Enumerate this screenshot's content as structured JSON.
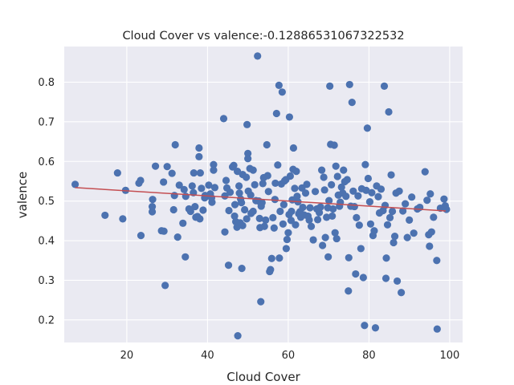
{
  "chart_data": {
    "type": "scatter",
    "title": "Cloud Cover vs valence:-0.12886531067322532",
    "xlabel": "Cloud Cover",
    "ylabel": "valence",
    "xlim": [
      4.5,
      103.2
    ],
    "ylim": [
      0.143,
      0.89
    ],
    "xticks": [
      20,
      40,
      60,
      80,
      100
    ],
    "yticks": [
      0.2,
      0.3,
      0.4,
      0.5,
      0.6,
      0.7,
      0.8
    ],
    "xtick_labels": [
      "20",
      "40",
      "60",
      "80",
      "100"
    ],
    "ytick_labels": [
      "0.2",
      "0.3",
      "0.4",
      "0.5",
      "0.6",
      "0.7",
      "0.8"
    ],
    "grid": true,
    "background": "#eaeaf2",
    "point_color": "#4c72b0",
    "trend_color": "#c44e52",
    "trend_line": [
      [
        7.2,
        0.534
      ],
      [
        99,
        0.475
      ]
    ],
    "points": [
      [
        7.2,
        0.542
      ],
      [
        14.6,
        0.464
      ],
      [
        17.7,
        0.571
      ],
      [
        19.0,
        0.455
      ],
      [
        19.7,
        0.527
      ],
      [
        23.0,
        0.545
      ],
      [
        23.4,
        0.552
      ],
      [
        23.5,
        0.413
      ],
      [
        26.4,
        0.504
      ],
      [
        26.3,
        0.486
      ],
      [
        26.3,
        0.473
      ],
      [
        27.1,
        0.588
      ],
      [
        28.6,
        0.425
      ],
      [
        29.1,
        0.548
      ],
      [
        29.2,
        0.424
      ],
      [
        29.5,
        0.287
      ],
      [
        30.0,
        0.587
      ],
      [
        31.2,
        0.57
      ],
      [
        31.6,
        0.478
      ],
      [
        31.8,
        0.514
      ],
      [
        32.0,
        0.642
      ],
      [
        32.6,
        0.409
      ],
      [
        33.0,
        0.54
      ],
      [
        33.9,
        0.444
      ],
      [
        34.2,
        0.529
      ],
      [
        34.5,
        0.359
      ],
      [
        34.6,
        0.512
      ],
      [
        35.4,
        0.48
      ],
      [
        35.8,
        0.474
      ],
      [
        36.2,
        0.538
      ],
      [
        36.5,
        0.521
      ],
      [
        36.6,
        0.571
      ],
      [
        36.9,
        0.486
      ],
      [
        37.1,
        0.459
      ],
      [
        37.5,
        0.461
      ],
      [
        37.9,
        0.634
      ],
      [
        37.9,
        0.612
      ],
      [
        38.2,
        0.571
      ],
      [
        38.1,
        0.455
      ],
      [
        38.5,
        0.532
      ],
      [
        38.9,
        0.477
      ],
      [
        39.3,
        0.508
      ],
      [
        39.4,
        0.514
      ],
      [
        40.3,
        0.54
      ],
      [
        40.7,
        0.518
      ],
      [
        41.0,
        0.508
      ],
      [
        41.1,
        0.497
      ],
      [
        41.5,
        0.578
      ],
      [
        41.5,
        0.592
      ],
      [
        41.8,
        0.534
      ],
      [
        44.0,
        0.708
      ],
      [
        44.3,
        0.422
      ],
      [
        44.3,
        0.513
      ],
      [
        44.6,
        0.552
      ],
      [
        44.8,
        0.533
      ],
      [
        45.2,
        0.338
      ],
      [
        45.3,
        0.476
      ],
      [
        45.6,
        0.522
      ],
      [
        46.2,
        0.586
      ],
      [
        46.5,
        0.59
      ],
      [
        46.7,
        0.462
      ],
      [
        46.8,
        0.491
      ],
      [
        47.0,
        0.448
      ],
      [
        47.3,
        0.434
      ],
      [
        47.4,
        0.575
      ],
      [
        47.5,
        0.16
      ],
      [
        47.8,
        0.538
      ],
      [
        47.9,
        0.52
      ],
      [
        48.1,
        0.445
      ],
      [
        48.2,
        0.505
      ],
      [
        48.4,
        0.496
      ],
      [
        48.5,
        0.33
      ],
      [
        48.7,
        0.567
      ],
      [
        48.7,
        0.438
      ],
      [
        49.2,
        0.478
      ],
      [
        49.6,
        0.56
      ],
      [
        49.7,
        0.455
      ],
      [
        49.8,
        0.693
      ],
      [
        50.0,
        0.62
      ],
      [
        50.0,
        0.607
      ],
      [
        50.1,
        0.525
      ],
      [
        50.5,
        0.582
      ],
      [
        50.7,
        0.515
      ],
      [
        50.8,
        0.469
      ],
      [
        51.3,
        0.474
      ],
      [
        51.3,
        0.578
      ],
      [
        51.7,
        0.541
      ],
      [
        52.0,
        0.501
      ],
      [
        52.4,
        0.866
      ],
      [
        52.7,
        0.5
      ],
      [
        52.9,
        0.456
      ],
      [
        53.0,
        0.433
      ],
      [
        53.2,
        0.246
      ],
      [
        53.3,
        0.487
      ],
      [
        53.5,
        0.496
      ],
      [
        53.7,
        0.544
      ],
      [
        53.9,
        0.559
      ],
      [
        54.1,
        0.436
      ],
      [
        54.4,
        0.452
      ],
      [
        54.7,
        0.642
      ],
      [
        54.9,
        0.564
      ],
      [
        55.1,
        0.524
      ],
      [
        55.4,
        0.322
      ],
      [
        55.6,
        0.327
      ],
      [
        55.9,
        0.355
      ],
      [
        56.2,
        0.458
      ],
      [
        56.5,
        0.432
      ],
      [
        56.7,
        0.504
      ],
      [
        56.8,
        0.545
      ],
      [
        57.1,
        0.721
      ],
      [
        57.4,
        0.591
      ],
      [
        57.7,
        0.792
      ],
      [
        57.8,
        0.356
      ],
      [
        58.0,
        0.474
      ],
      [
        58.3,
        0.543
      ],
      [
        58.5,
        0.775
      ],
      [
        58.7,
        0.442
      ],
      [
        58.9,
        0.491
      ],
      [
        59.1,
        0.551
      ],
      [
        59.4,
        0.554
      ],
      [
        59.5,
        0.38
      ],
      [
        59.7,
        0.403
      ],
      [
        60.0,
        0.42
      ],
      [
        60.2,
        0.466
      ],
      [
        60.3,
        0.712
      ],
      [
        60.5,
        0.563
      ],
      [
        60.7,
        0.451
      ],
      [
        60.8,
        0.474
      ],
      [
        61.0,
        0.503
      ],
      [
        61.2,
        0.58
      ],
      [
        61.3,
        0.634
      ],
      [
        61.6,
        0.532
      ],
      [
        61.8,
        0.44
      ],
      [
        62.0,
        0.575
      ],
      [
        62.2,
        0.512
      ],
      [
        62.4,
        0.498
      ],
      [
        62.6,
        0.468
      ],
      [
        62.9,
        0.473
      ],
      [
        63.1,
        0.459
      ],
      [
        63.4,
        0.533
      ],
      [
        63.6,
        0.484
      ],
      [
        63.9,
        0.465
      ],
      [
        64.3,
        0.52
      ],
      [
        64.6,
        0.542
      ],
      [
        64.9,
        0.462
      ],
      [
        65.2,
        0.452
      ],
      [
        65.4,
        0.483
      ],
      [
        65.7,
        0.436
      ],
      [
        66.2,
        0.402
      ],
      [
        66.7,
        0.524
      ],
      [
        67.1,
        0.48
      ],
      [
        67.3,
        0.453
      ],
      [
        67.7,
        0.471
      ],
      [
        68.0,
        0.485
      ],
      [
        68.3,
        0.578
      ],
      [
        68.5,
        0.388
      ],
      [
        68.8,
        0.56
      ],
      [
        69.0,
        0.528
      ],
      [
        69.2,
        0.408
      ],
      [
        69.5,
        0.459
      ],
      [
        69.8,
        0.483
      ],
      [
        69.9,
        0.359
      ],
      [
        70.1,
        0.501
      ],
      [
        70.3,
        0.79
      ],
      [
        70.5,
        0.643
      ],
      [
        70.7,
        0.541
      ],
      [
        70.9,
        0.462
      ],
      [
        71.1,
        0.48
      ],
      [
        71.4,
        0.641
      ],
      [
        71.6,
        0.42
      ],
      [
        71.8,
        0.588
      ],
      [
        72.0,
        0.405
      ],
      [
        72.2,
        0.562
      ],
      [
        72.4,
        0.515
      ],
      [
        72.7,
        0.487
      ],
      [
        72.9,
        0.497
      ],
      [
        73.2,
        0.535
      ],
      [
        73.5,
        0.52
      ],
      [
        73.7,
        0.578
      ],
      [
        74.0,
        0.549
      ],
      [
        74.3,
        0.512
      ],
      [
        74.6,
        0.554
      ],
      [
        74.9,
        0.273
      ],
      [
        75.0,
        0.357
      ],
      [
        75.2,
        0.794
      ],
      [
        75.5,
        0.487
      ],
      [
        75.8,
        0.749
      ],
      [
        76.1,
        0.525
      ],
      [
        76.4,
        0.486
      ],
      [
        76.7,
        0.316
      ],
      [
        76.9,
        0.458
      ],
      [
        77.3,
        0.513
      ],
      [
        77.6,
        0.439
      ],
      [
        78.0,
        0.38
      ],
      [
        78.2,
        0.531
      ],
      [
        78.6,
        0.307
      ],
      [
        78.9,
        0.186
      ],
      [
        79.1,
        0.592
      ],
      [
        79.3,
        0.527
      ],
      [
        79.6,
        0.684
      ],
      [
        79.8,
        0.557
      ],
      [
        80.2,
        0.498
      ],
      [
        80.4,
        0.442
      ],
      [
        80.7,
        0.521
      ],
      [
        81.0,
        0.413
      ],
      [
        81.3,
        0.425
      ],
      [
        81.6,
        0.18
      ],
      [
        81.9,
        0.538
      ],
      [
        82.3,
        0.511
      ],
      [
        82.6,
        0.47
      ],
      [
        83.0,
        0.53
      ],
      [
        83.5,
        0.476
      ],
      [
        83.8,
        0.79
      ],
      [
        84.0,
        0.489
      ],
      [
        84.2,
        0.305
      ],
      [
        84.3,
        0.356
      ],
      [
        84.6,
        0.44
      ],
      [
        84.9,
        0.725
      ],
      [
        85.2,
        0.458
      ],
      [
        85.5,
        0.566
      ],
      [
        85.8,
        0.474
      ],
      [
        86.1,
        0.395
      ],
      [
        86.4,
        0.411
      ],
      [
        86.7,
        0.52
      ],
      [
        87.0,
        0.298
      ],
      [
        87.5,
        0.525
      ],
      [
        88.0,
        0.269
      ],
      [
        88.4,
        0.475
      ],
      [
        89.0,
        0.493
      ],
      [
        89.5,
        0.408
      ],
      [
        90.0,
        0.452
      ],
      [
        90.6,
        0.51
      ],
      [
        91.1,
        0.419
      ],
      [
        92.0,
        0.48
      ],
      [
        92.6,
        0.484
      ],
      [
        93.9,
        0.574
      ],
      [
        94.4,
        0.502
      ],
      [
        94.8,
        0.415
      ],
      [
        95.0,
        0.386
      ],
      [
        95.2,
        0.518
      ],
      [
        95.5,
        0.422
      ],
      [
        96.0,
        0.459
      ],
      [
        96.8,
        0.35
      ],
      [
        96.9,
        0.177
      ],
      [
        97.7,
        0.482
      ],
      [
        98.6,
        0.505
      ],
      [
        98.9,
        0.488
      ],
      [
        99.2,
        0.479
      ]
    ]
  }
}
